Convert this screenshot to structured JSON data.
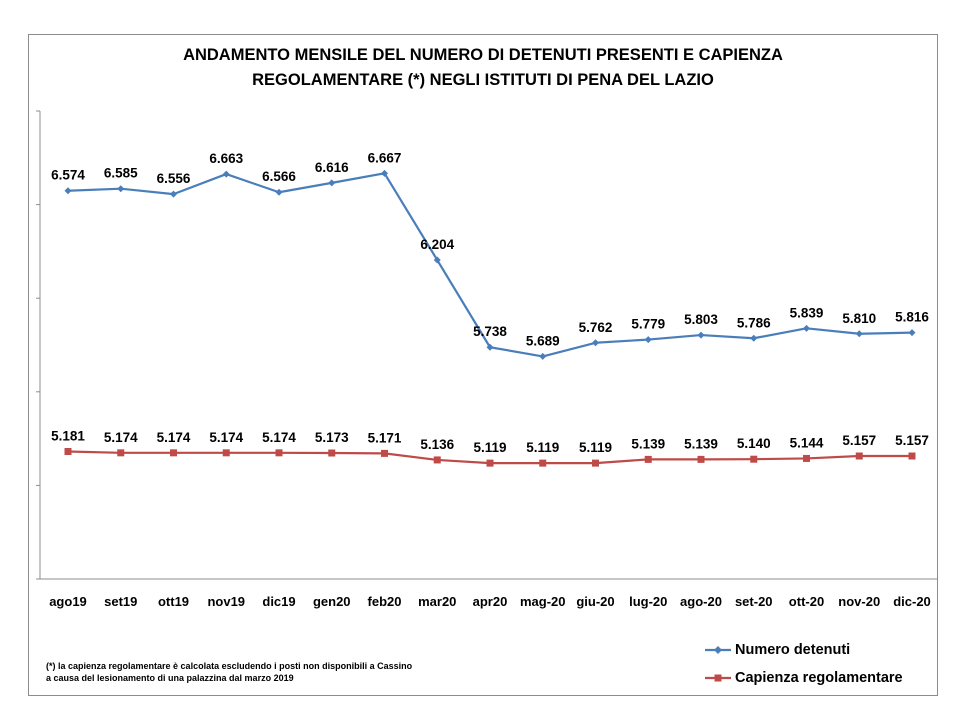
{
  "chart_data": {
    "type": "line",
    "title_lines": [
      "ANDAMENTO MENSILE  DEL NUMERO DI DETENUTI PRESENTI E CAPIENZA",
      "REGOLAMENTARE (*) NEGLI ISTITUTI DI PENA DEL LAZIO"
    ],
    "categories": [
      "ago19",
      "set19",
      "ott19",
      "nov19",
      "dic19",
      "gen20",
      "feb20",
      "mar20",
      "apr20",
      "mag-20",
      "giu-20",
      "lug-20",
      "ago-20",
      "set-20",
      "ott-20",
      "nov-20",
      "dic-20"
    ],
    "series": [
      {
        "name": "Numero detenuti",
        "color": "#4a7ebb",
        "marker": "diamond",
        "values": [
          6574,
          6585,
          6556,
          6663,
          6566,
          6616,
          6667,
          6204,
          5738,
          5689,
          5762,
          5779,
          5803,
          5786,
          5839,
          5810,
          5816
        ],
        "labels": [
          "6.574",
          "6.585",
          "6.556",
          "6.663",
          "6.566",
          "6.616",
          "6.667",
          "6.204",
          "5.738",
          "5.689",
          "5.762",
          "5.779",
          "5.803",
          "5.786",
          "5.839",
          "5.810",
          "5.816"
        ]
      },
      {
        "name": "Capienza regolamentare",
        "color": "#be4b48",
        "marker": "square",
        "values": [
          5181,
          5174,
          5174,
          5174,
          5174,
          5173,
          5171,
          5136,
          5119,
          5119,
          5119,
          5139,
          5139,
          5140,
          5144,
          5157,
          5157
        ],
        "labels": [
          "5.181",
          "5.174",
          "5.174",
          "5.174",
          "5.174",
          "5.173",
          "5.171",
          "5.136",
          "5.119",
          "5.119",
          "5.119",
          "5.139",
          "5.139",
          "5.140",
          "5.144",
          "5.157",
          "5.157"
        ]
      }
    ],
    "ylim": [
      4500,
      7000
    ],
    "y_ticks": [
      4500,
      5000,
      5500,
      6000,
      6500,
      7000
    ],
    "y_tick_labels_shown": false,
    "grid": false,
    "legend_position": "bottom-right",
    "axis_color": "#8c8c8c"
  },
  "footnote": [
    "(*) la capienza regolamentare è calcolata escludendo i posti non disponibili a Cassino",
    "a causa del lesionamento di una palazzina dal marzo 2019"
  ]
}
